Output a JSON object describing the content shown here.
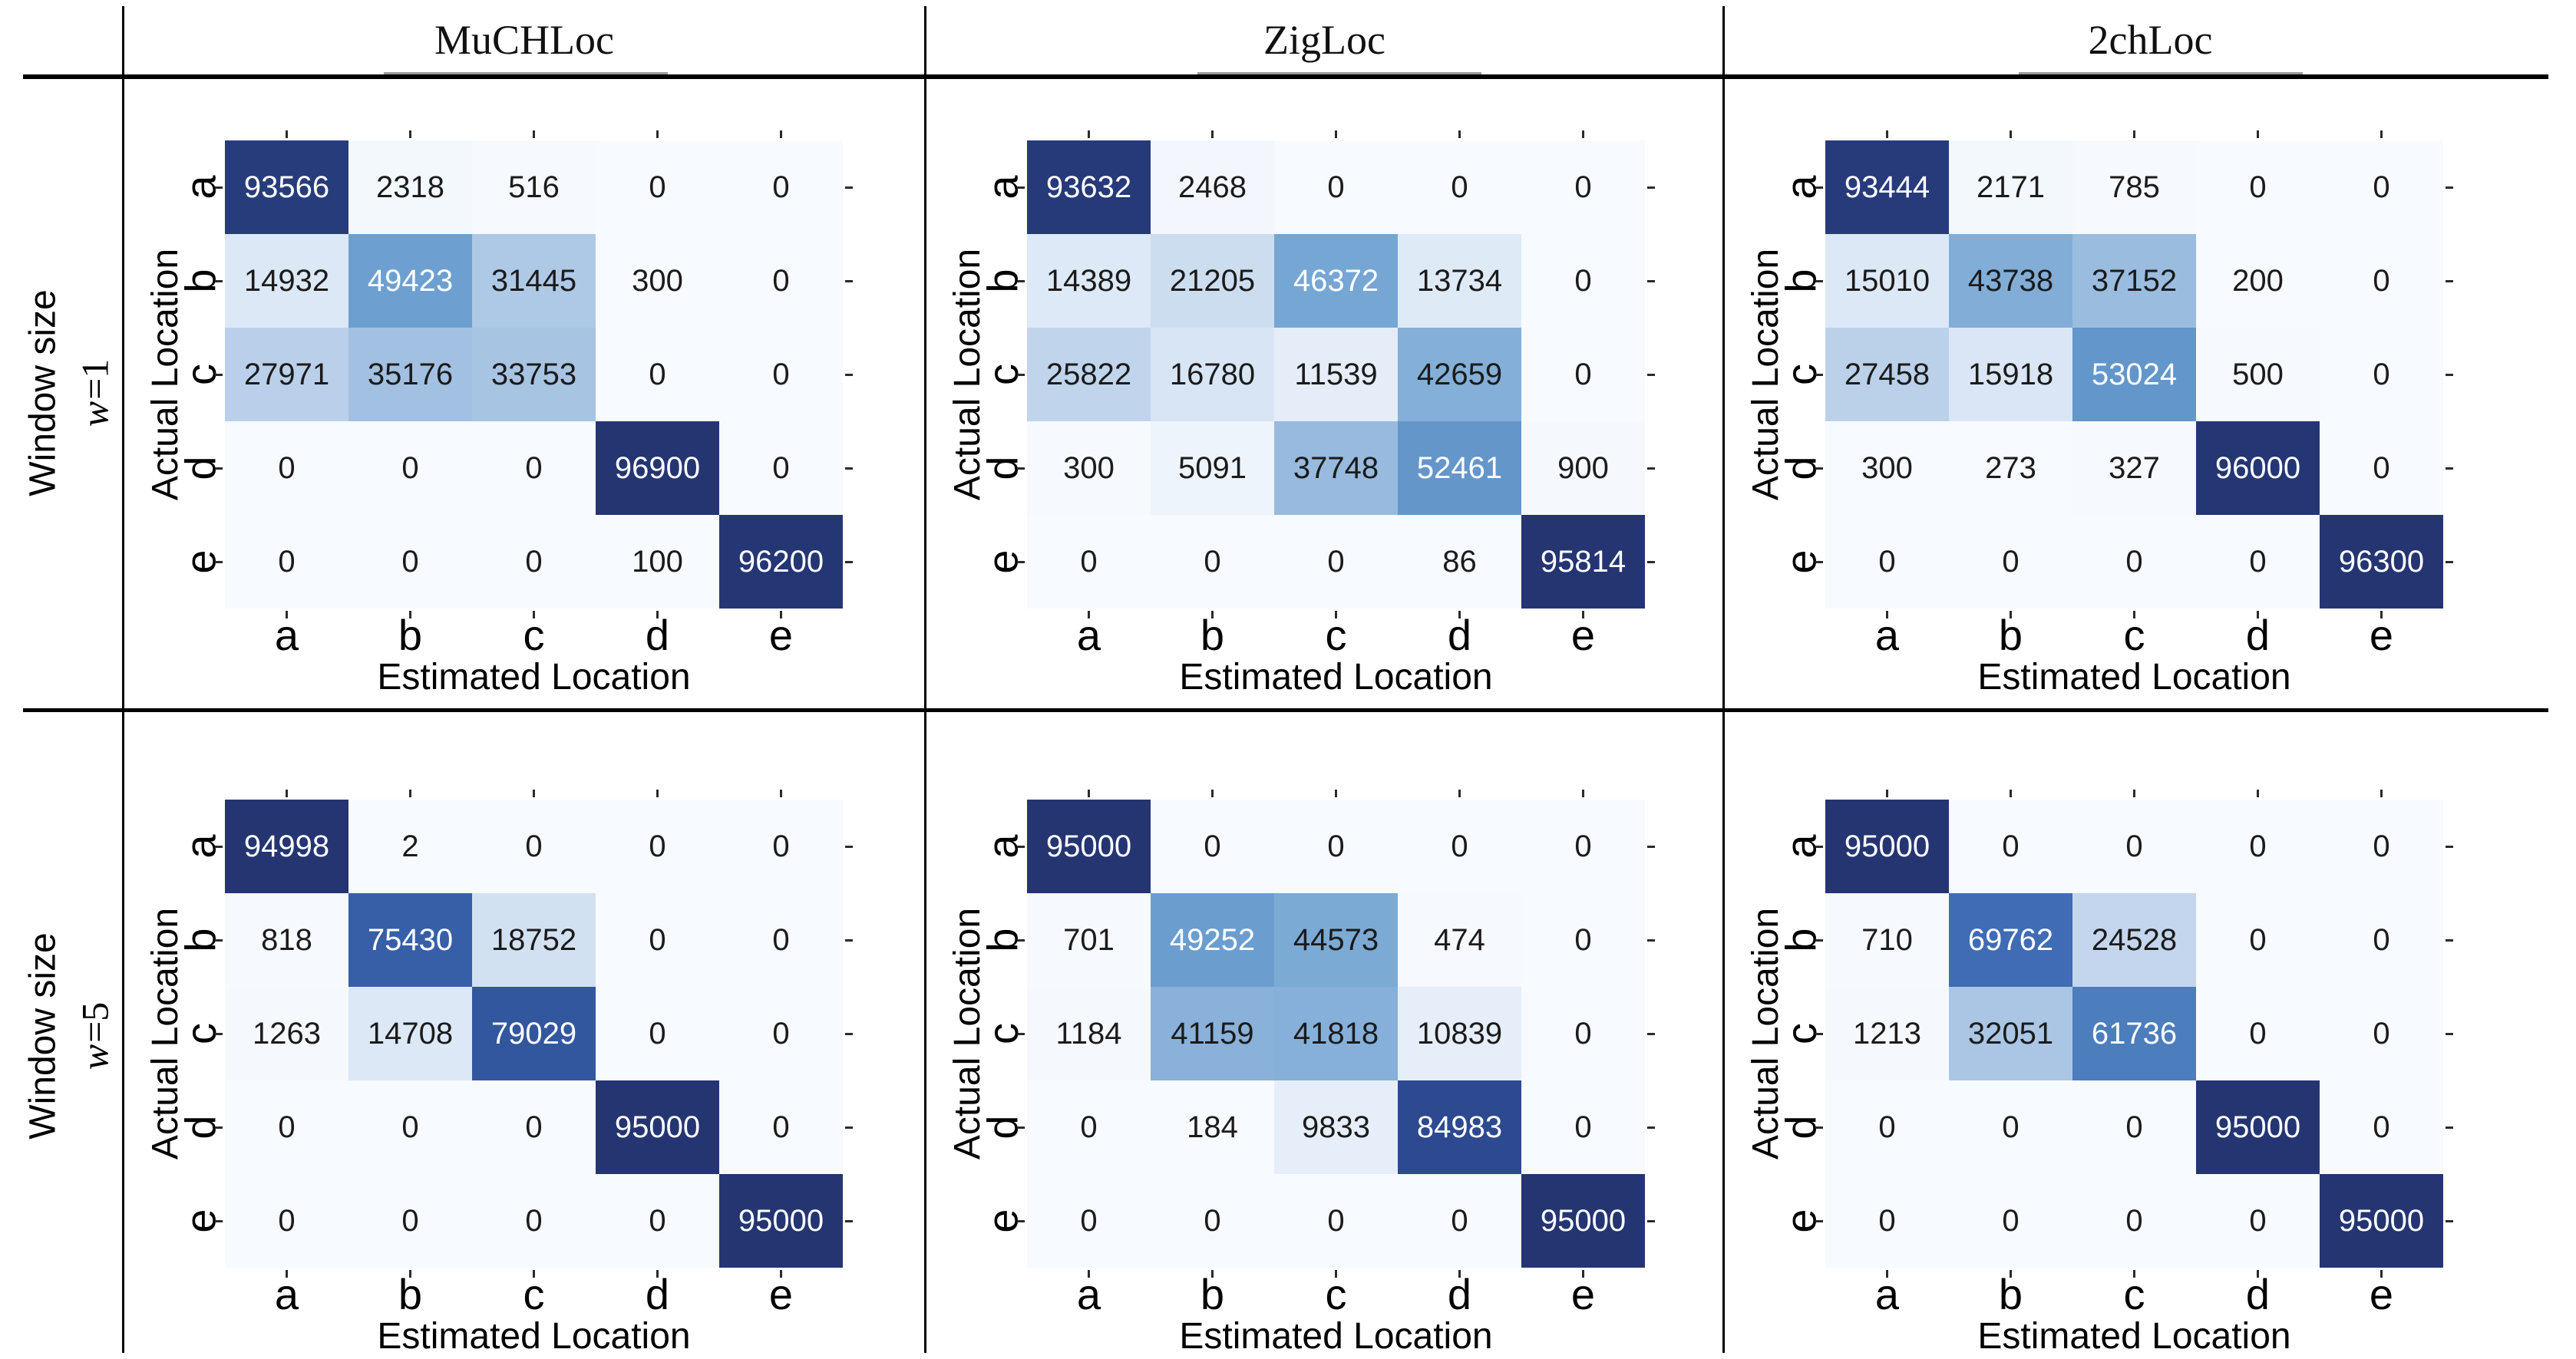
{
  "figure": {
    "columns": [
      "MuCHLoc",
      "ZigLoc",
      "2chLoc"
    ],
    "row_groups": [
      {
        "label": "Window size",
        "symbol": "w",
        "value": "=1"
      },
      {
        "label": "Window size",
        "symbol": "w",
        "value": "=5"
      }
    ]
  },
  "axes": {
    "x_label": "Estimated Location",
    "y_label": "Actual Location",
    "x_ticks": [
      "a",
      "b",
      "c",
      "d",
      "e"
    ],
    "y_ticks": [
      "a",
      "b",
      "c",
      "d",
      "e"
    ]
  },
  "palette": {
    "name": "blues-sequential",
    "stops": [
      [
        0.0,
        247,
        250,
        254
      ],
      [
        0.125,
        227,
        237,
        248
      ],
      [
        0.25,
        198,
        216,
        238
      ],
      [
        0.375,
        158,
        190,
        224
      ],
      [
        0.5,
        112,
        163,
        210
      ],
      [
        0.625,
        80,
        130,
        190
      ],
      [
        0.75,
        60,
        105,
        178
      ],
      [
        0.875,
        47,
        77,
        148
      ],
      [
        1.0,
        36,
        53,
        114
      ]
    ],
    "text_dark": "#1b1b1b",
    "text_light": "#ffffff",
    "white_text_threshold": 0.475,
    "tick_color": "#2b2b2b",
    "rule_color": "#000000"
  },
  "chart_data": [
    {
      "type": "heatmap",
      "group": "MuCHLoc",
      "window": "w=1",
      "xlabel": "Estimated Location",
      "ylabel": "Actual Location",
      "x": [
        "a",
        "b",
        "c",
        "d",
        "e"
      ],
      "y": [
        "a",
        "b",
        "c",
        "d",
        "e"
      ],
      "vmin": 0,
      "vmax": 96900,
      "values": [
        [
          93566,
          2318,
          516,
          0,
          0
        ],
        [
          14932,
          49423,
          31445,
          300,
          0
        ],
        [
          27971,
          35176,
          33753,
          0,
          0
        ],
        [
          0,
          0,
          0,
          96900,
          0
        ],
        [
          0,
          0,
          0,
          100,
          96200
        ]
      ]
    },
    {
      "type": "heatmap",
      "group": "ZigLoc",
      "window": "w=1",
      "xlabel": "Estimated Location",
      "ylabel": "Actual Location",
      "x": [
        "a",
        "b",
        "c",
        "d",
        "e"
      ],
      "y": [
        "a",
        "b",
        "c",
        "d",
        "e"
      ],
      "vmin": 0,
      "vmax": 95814,
      "values": [
        [
          93632,
          2468,
          0,
          0,
          0
        ],
        [
          14389,
          21205,
          46372,
          13734,
          0
        ],
        [
          25822,
          16780,
          11539,
          42659,
          0
        ],
        [
          300,
          5091,
          37748,
          52461,
          900
        ],
        [
          0,
          0,
          0,
          86,
          95814
        ]
      ]
    },
    {
      "type": "heatmap",
      "group": "2chLoc",
      "window": "w=1",
      "xlabel": "Estimated Location",
      "ylabel": "Actual Location",
      "x": [
        "a",
        "b",
        "c",
        "d",
        "e"
      ],
      "y": [
        "a",
        "b",
        "c",
        "d",
        "e"
      ],
      "vmin": 0,
      "vmax": 96300,
      "values": [
        [
          93444,
          2171,
          785,
          0,
          0
        ],
        [
          15010,
          43738,
          37152,
          200,
          0
        ],
        [
          27458,
          15918,
          53024,
          500,
          0
        ],
        [
          300,
          273,
          327,
          96000,
          0
        ],
        [
          0,
          0,
          0,
          0,
          96300
        ]
      ]
    },
    {
      "type": "heatmap",
      "group": "MuCHLoc",
      "window": "w=5",
      "xlabel": "Estimated Location",
      "ylabel": "Actual Location",
      "x": [
        "a",
        "b",
        "c",
        "d",
        "e"
      ],
      "y": [
        "a",
        "b",
        "c",
        "d",
        "e"
      ],
      "vmin": 0,
      "vmax": 95000,
      "values": [
        [
          94998,
          2,
          0,
          0,
          0
        ],
        [
          818,
          75430,
          18752,
          0,
          0
        ],
        [
          1263,
          14708,
          79029,
          0,
          0
        ],
        [
          0,
          0,
          0,
          95000,
          0
        ],
        [
          0,
          0,
          0,
          0,
          95000
        ]
      ]
    },
    {
      "type": "heatmap",
      "group": "ZigLoc",
      "window": "w=5",
      "xlabel": "Estimated Location",
      "ylabel": "Actual Location",
      "x": [
        "a",
        "b",
        "c",
        "d",
        "e"
      ],
      "y": [
        "a",
        "b",
        "c",
        "d",
        "e"
      ],
      "vmin": 0,
      "vmax": 95000,
      "values": [
        [
          95000,
          0,
          0,
          0,
          0
        ],
        [
          701,
          49252,
          44573,
          474,
          0
        ],
        [
          1184,
          41159,
          41818,
          10839,
          0
        ],
        [
          0,
          184,
          9833,
          84983,
          0
        ],
        [
          0,
          0,
          0,
          0,
          95000
        ]
      ]
    },
    {
      "type": "heatmap",
      "group": "2chLoc",
      "window": "w=5",
      "xlabel": "Estimated Location",
      "ylabel": "Actual Location",
      "x": [
        "a",
        "b",
        "c",
        "d",
        "e"
      ],
      "y": [
        "a",
        "b",
        "c",
        "d",
        "e"
      ],
      "vmin": 0,
      "vmax": 95000,
      "values": [
        [
          95000,
          0,
          0,
          0,
          0
        ],
        [
          710,
          69762,
          24528,
          0,
          0
        ],
        [
          1213,
          32051,
          61736,
          0,
          0
        ],
        [
          0,
          0,
          0,
          95000,
          0
        ],
        [
          0,
          0,
          0,
          0,
          95000
        ]
      ]
    }
  ]
}
